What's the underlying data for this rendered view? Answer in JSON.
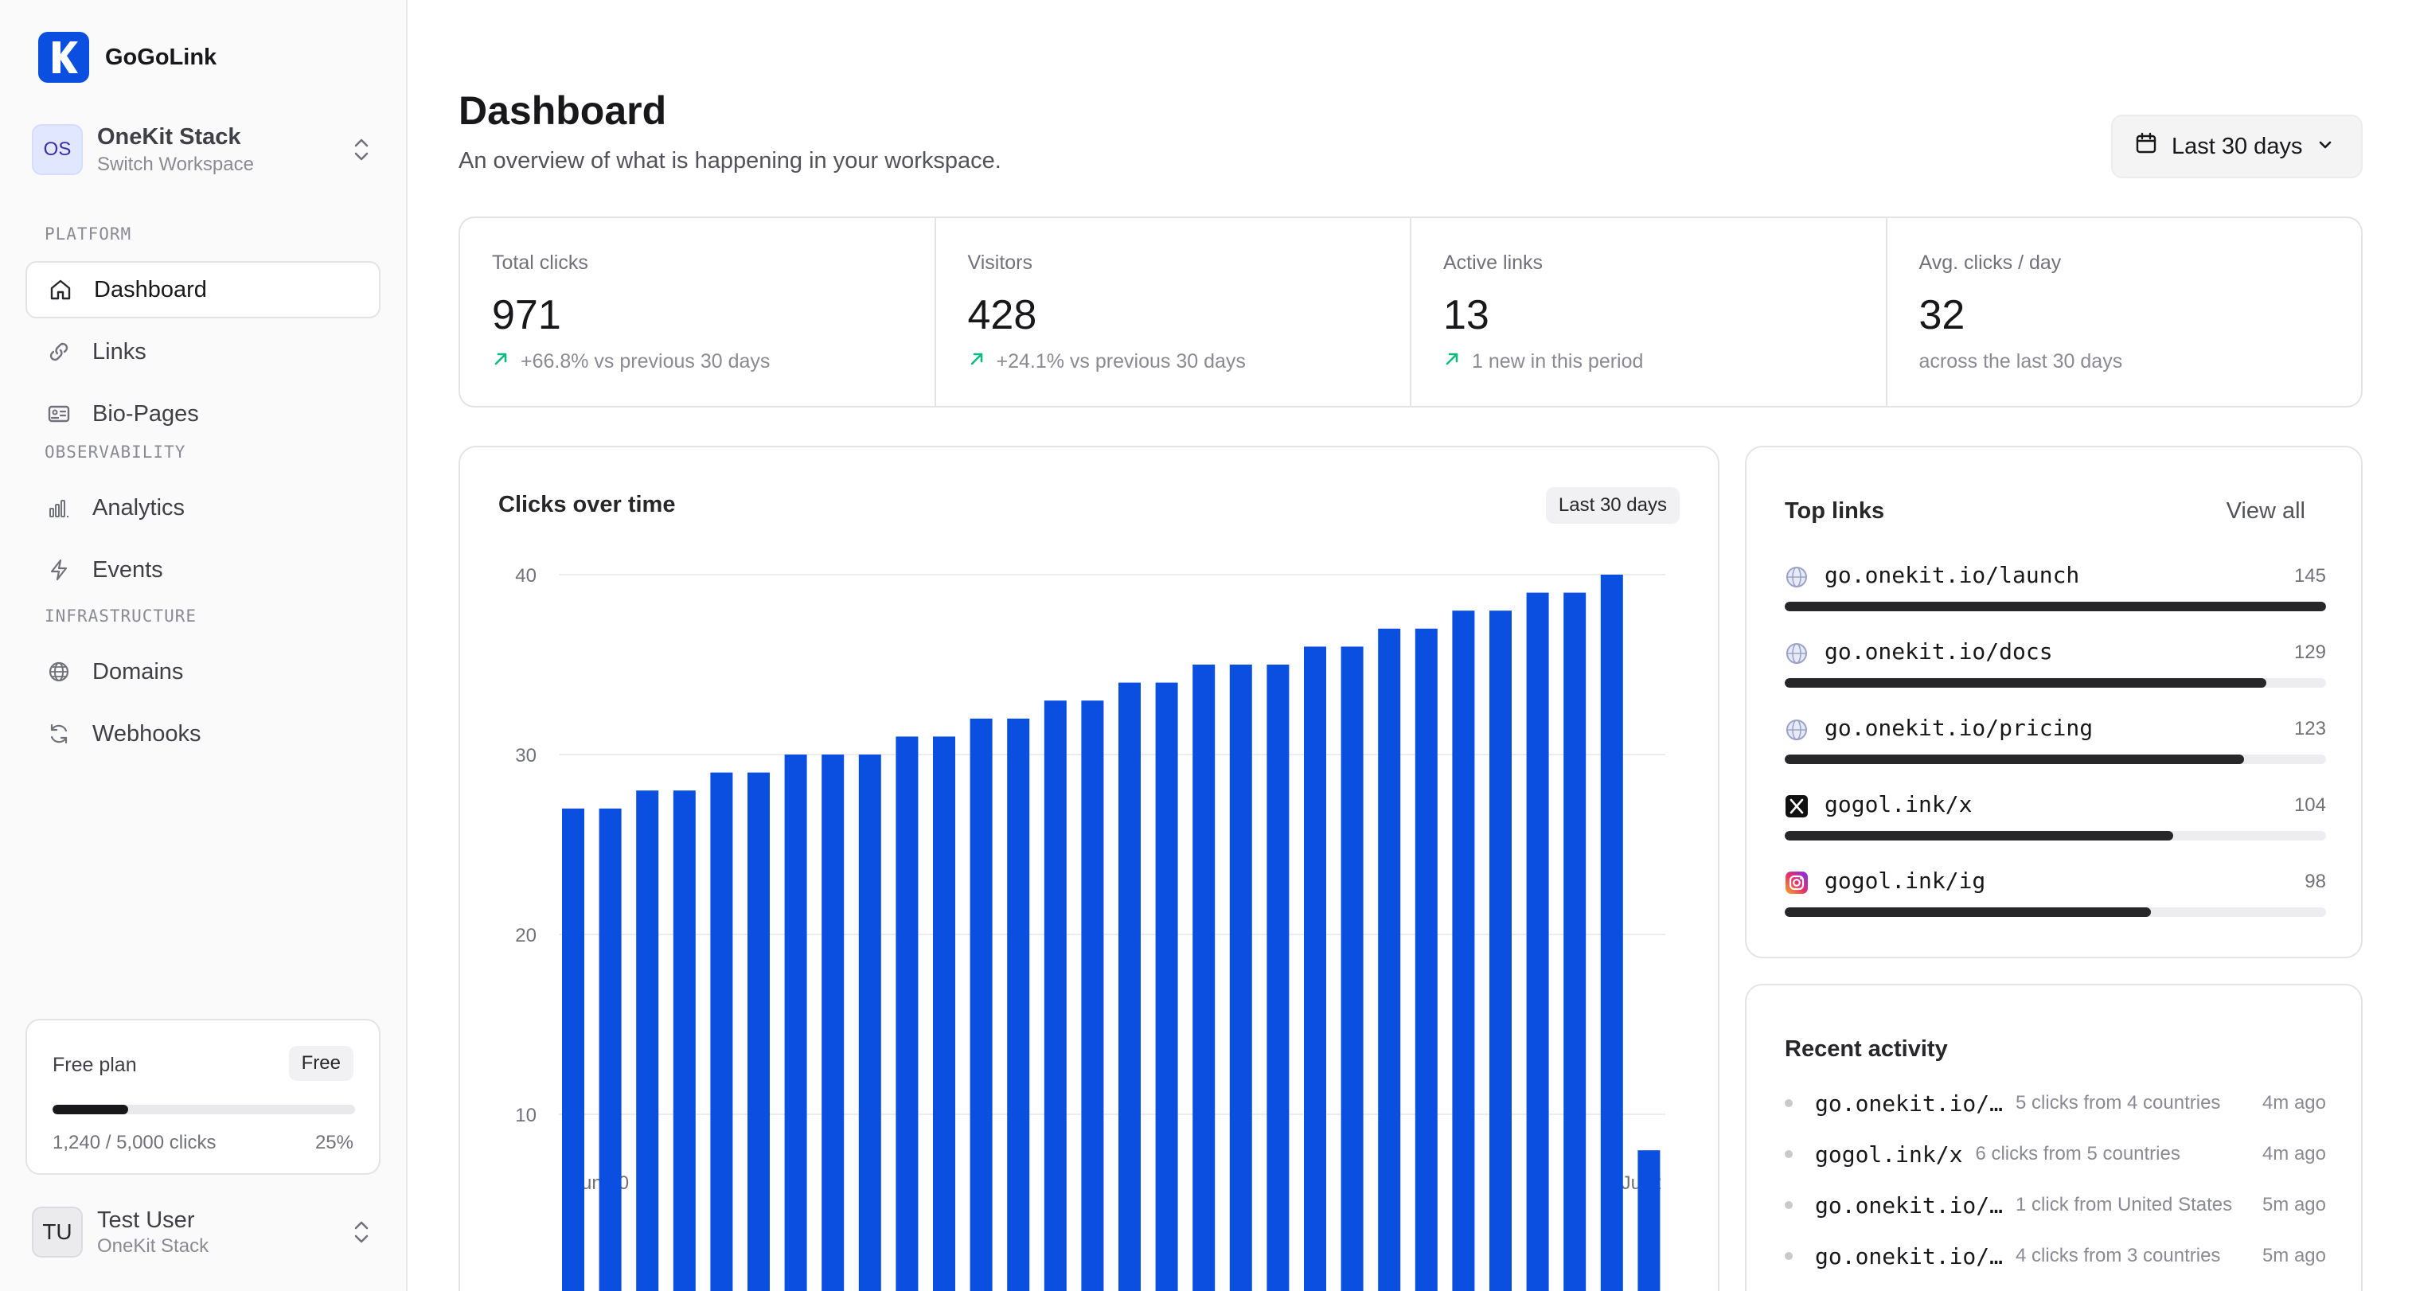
{
  "app": {
    "name": "GoGoLink"
  },
  "workspace": {
    "initials": "OS",
    "name": "OneKit Stack",
    "subtitle": "Switch Workspace"
  },
  "nav": {
    "sections": [
      {
        "label": "PLATFORM",
        "items": [
          {
            "label": "Dashboard",
            "icon": "home-icon",
            "active": true
          },
          {
            "label": "Links",
            "icon": "link-icon"
          },
          {
            "label": "Bio-Pages",
            "icon": "id-card-icon"
          }
        ]
      },
      {
        "label": "OBSERVABILITY",
        "items": [
          {
            "label": "Analytics",
            "icon": "bar-chart-icon"
          },
          {
            "label": "Events",
            "icon": "bolt-icon"
          }
        ]
      },
      {
        "label": "INFRASTRUCTURE",
        "items": [
          {
            "label": "Domains",
            "icon": "globe-icon"
          },
          {
            "label": "Webhooks",
            "icon": "refresh-icon"
          }
        ]
      }
    ]
  },
  "plan": {
    "title": "Free plan",
    "badge": "Free",
    "usage": "1,240 / 5,000 clicks",
    "percent_label": "25%",
    "percent": 0.25
  },
  "user": {
    "initials": "TU",
    "name": "Test User",
    "workspace": "OneKit Stack"
  },
  "header": {
    "title": "Dashboard",
    "subtitle": "An overview of what is happening in your workspace.",
    "range_label": "Last 30 days"
  },
  "stats": [
    {
      "label": "Total clicks",
      "value": "971",
      "note": "+66.8% vs previous 30 days",
      "trend": "up"
    },
    {
      "label": "Visitors",
      "value": "428",
      "note": "+24.1% vs previous 30 days",
      "trend": "up"
    },
    {
      "label": "Active links",
      "value": "13",
      "note": "1 new in this period",
      "trend": "up"
    },
    {
      "label": "Avg. clicks / day",
      "value": "32",
      "note": "across the last 30 days",
      "trend": "none"
    }
  ],
  "chart_card": {
    "title": "Clicks over time",
    "badge": "Last 30 days"
  },
  "chart_data": {
    "type": "bar",
    "title": "Clicks over time",
    "values": [
      27,
      27,
      28,
      28,
      29,
      29,
      30,
      30,
      30,
      31,
      31,
      32,
      32,
      33,
      33,
      34,
      34,
      35,
      35,
      35,
      36,
      36,
      37,
      37,
      38,
      38,
      39,
      39,
      40,
      8
    ],
    "ylim": [
      0,
      40
    ],
    "yticks": [
      40,
      30,
      20,
      10
    ],
    "x_tick_labels": [
      "Jun 30",
      "Jul 2"
    ],
    "grid": true,
    "bar_color": "#0b4fe0"
  },
  "top_links": {
    "title": "Top links",
    "view_all": "View all",
    "max": 145,
    "items": [
      {
        "name": "go.onekit.io/launch",
        "count": 145,
        "icon": "globe-icon"
      },
      {
        "name": "go.onekit.io/docs",
        "count": 129,
        "icon": "globe-icon"
      },
      {
        "name": "go.onekit.io/pricing",
        "count": 123,
        "icon": "globe-icon"
      },
      {
        "name": "gogol.ink/x",
        "count": 104,
        "icon": "x-logo-icon"
      },
      {
        "name": "gogol.ink/ig",
        "count": 98,
        "icon": "instagram-icon"
      }
    ]
  },
  "recent": {
    "title": "Recent activity",
    "items": [
      {
        "link": "go.onekit.io/…",
        "desc": "5 clicks from 4 countries",
        "time": "4m ago"
      },
      {
        "link": "gogol.ink/x",
        "desc": "6 clicks from 5 countries",
        "time": "4m ago"
      },
      {
        "link": "go.onekit.io/…",
        "desc": "1 click from United States",
        "time": "5m ago"
      },
      {
        "link": "go.onekit.io/…",
        "desc": "4 clicks from 3 countries",
        "time": "5m ago"
      }
    ]
  },
  "colors": {
    "accent": "#0b4fe0",
    "trend_up": "#10b981",
    "bar_dark": "#27272a"
  }
}
